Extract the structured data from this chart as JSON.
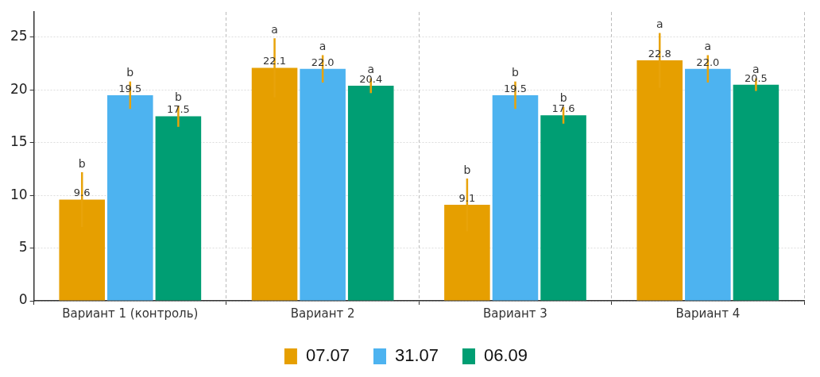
{
  "chart_data": {
    "type": "bar",
    "categories": [
      "Вариант 1 (контроль)",
      "Вариант 2",
      "Вариант 3",
      "Вариант 4"
    ],
    "series": [
      {
        "name": "07.07",
        "color": "#e69f00",
        "values": [
          9.6,
          22.1,
          9.1,
          22.8
        ],
        "value_labels": [
          "9.6",
          "22.1",
          "9.1",
          "22.8"
        ],
        "errors": [
          2.6,
          2.8,
          2.5,
          2.6
        ]
      },
      {
        "name": "31.07",
        "color": "#4db3f0",
        "values": [
          19.5,
          22.0,
          19.5,
          22.0
        ],
        "value_labels": [
          "19.5",
          "22.0",
          "19.5",
          "22.0"
        ],
        "errors": [
          1.3,
          1.3,
          1.3,
          1.3
        ]
      },
      {
        "name": "06.09",
        "color": "#009e73",
        "values": [
          17.5,
          20.4,
          17.6,
          20.5
        ],
        "value_labels": [
          "17.5",
          "20.4",
          "17.6",
          "20.5"
        ],
        "errors": [
          1.0,
          0.7,
          0.8,
          0.6
        ]
      }
    ],
    "annotations": [
      "b",
      "b",
      "b",
      "a",
      "a",
      "a",
      "b",
      "b",
      "b",
      "a",
      "a",
      "a"
    ],
    "ylim": [
      0,
      27.4
    ],
    "yticks": [
      0,
      5,
      10,
      15,
      20,
      25
    ],
    "grid": true,
    "legend": "bottom"
  }
}
